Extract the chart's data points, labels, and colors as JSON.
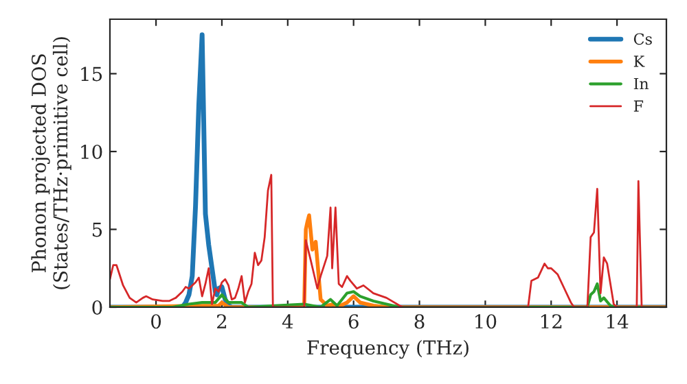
{
  "chart_data": {
    "type": "line",
    "xlabel": "Frequency (THz)",
    "ylabel": "Phonon projected DOS\n(States/THz·primitive cell)",
    "xlim": [
      -1.4,
      15.5
    ],
    "ylim": [
      0,
      18.5
    ],
    "xticks": [
      0,
      2,
      4,
      6,
      8,
      10,
      12,
      14
    ],
    "yticks": [
      0,
      5,
      10,
      15
    ],
    "legend": "top right",
    "grid": false,
    "series": [
      {
        "name": "Cs",
        "color": "#1f77b4",
        "x": [
          -1.4,
          0.8,
          0.9,
          1.0,
          1.1,
          1.2,
          1.3,
          1.4,
          1.5,
          1.6,
          1.7,
          1.8,
          1.85,
          1.9,
          2.0,
          2.1,
          2.2,
          2.3,
          15.5
        ],
        "values": [
          0,
          0,
          0.3,
          0.8,
          2.0,
          6.5,
          13,
          17.5,
          6,
          4,
          2.5,
          1.0,
          0.8,
          1.2,
          1.3,
          0.5,
          0.1,
          0,
          0
        ]
      },
      {
        "name": "K",
        "color": "#ff7f0e",
        "x": [
          -1.4,
          1.9,
          2.0,
          2.2,
          4.5,
          4.55,
          4.6,
          4.65,
          4.75,
          4.85,
          5.0,
          5.2,
          5.4,
          5.5,
          5.8,
          6.0,
          6.2,
          6.6,
          7.0,
          15.5
        ],
        "values": [
          0,
          0.1,
          0.3,
          0,
          0,
          5.0,
          5.5,
          5.9,
          3.7,
          4.2,
          0.5,
          0.1,
          0.2,
          0,
          0.3,
          0.7,
          0.3,
          0.1,
          0,
          0
        ]
      },
      {
        "name": "In",
        "color": "#2ca02c",
        "x": [
          -1.4,
          0.5,
          1.0,
          1.4,
          1.8,
          2.0,
          2.2,
          2.6,
          2.8,
          3.6,
          4.5,
          5.0,
          5.3,
          5.5,
          5.8,
          6.0,
          6.2,
          6.6,
          7.0,
          7.4,
          13.1,
          13.2,
          13.3,
          13.4,
          13.5,
          13.6,
          13.8,
          13.9,
          15.5
        ],
        "values": [
          0,
          0,
          0.2,
          0.3,
          0.3,
          0.8,
          0.3,
          0.3,
          0,
          0.1,
          0.2,
          0,
          0.5,
          0.1,
          0.9,
          1.0,
          0.7,
          0.4,
          0.2,
          0,
          0,
          0.8,
          1.0,
          1.5,
          0.4,
          0.6,
          0.1,
          0,
          0
        ]
      },
      {
        "name": "F",
        "color": "#d62728",
        "x": [
          -1.4,
          -1.3,
          -1.2,
          -1.0,
          -0.8,
          -0.6,
          -0.4,
          -0.3,
          -0.1,
          0.2,
          0.4,
          0.6,
          0.8,
          0.9,
          1.0,
          1.2,
          1.3,
          1.4,
          1.5,
          1.6,
          1.7,
          1.8,
          1.9,
          2.0,
          2.1,
          2.2,
          2.3,
          2.4,
          2.5,
          2.6,
          2.7,
          2.8,
          2.9,
          3.0,
          3.1,
          3.2,
          3.3,
          3.4,
          3.5,
          3.55,
          4.5,
          4.55,
          4.7,
          4.9,
          5.0,
          5.2,
          5.3,
          5.35,
          5.45,
          5.55,
          5.65,
          5.8,
          5.9,
          6.1,
          6.3,
          6.6,
          7.0,
          7.4,
          7.5,
          11.3,
          11.4,
          11.6,
          11.8,
          11.9,
          12.0,
          12.2,
          12.4,
          12.6,
          12.7,
          13.1,
          13.2,
          13.3,
          13.4,
          13.5,
          13.6,
          13.7,
          13.9,
          14.0,
          14.6,
          14.65,
          14.75,
          15.5
        ],
        "values": [
          1.8,
          2.7,
          2.7,
          1.4,
          0.6,
          0.3,
          0.6,
          0.7,
          0.5,
          0.4,
          0.4,
          0.6,
          1.0,
          1.3,
          1.2,
          1.6,
          1.9,
          0.7,
          1.5,
          2.5,
          0.2,
          1.2,
          1.0,
          1.6,
          1.8,
          1.4,
          0.5,
          0.6,
          1.2,
          2.0,
          0.3,
          1.0,
          1.5,
          3.5,
          2.7,
          3.0,
          4.5,
          7.5,
          8.5,
          0,
          0,
          4.3,
          3.0,
          1.2,
          2.0,
          3.3,
          6.4,
          2.5,
          6.4,
          1.5,
          1.3,
          2.0,
          1.7,
          1.2,
          1.4,
          0.9,
          0.6,
          0.1,
          0,
          0,
          1.7,
          1.9,
          2.8,
          2.5,
          2.5,
          2.1,
          1.2,
          0.3,
          0,
          0,
          4.5,
          4.8,
          7.6,
          0.9,
          3.2,
          2.8,
          0.2,
          0,
          0,
          8.1,
          0,
          0
        ]
      }
    ]
  }
}
